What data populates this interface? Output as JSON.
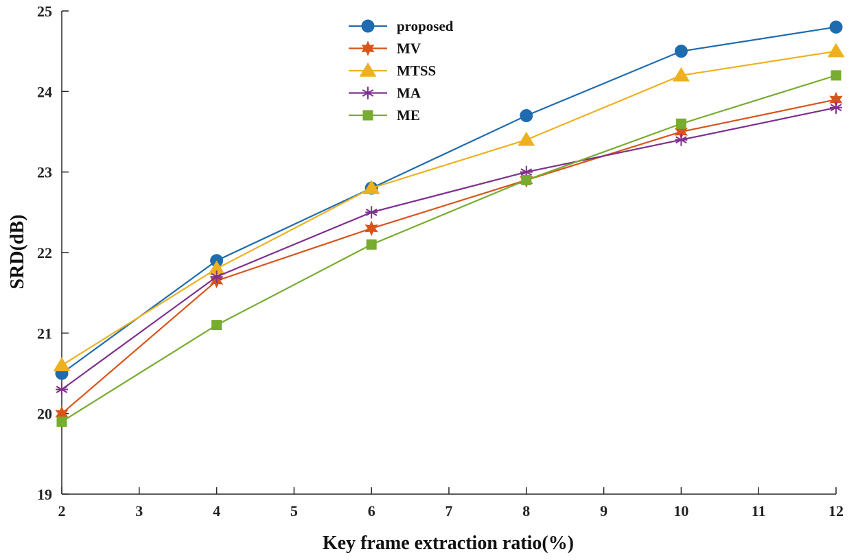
{
  "chart_data": {
    "type": "line",
    "title": "",
    "xlabel": "Key frame extraction ratio(%)",
    "ylabel": "SRD(dB)",
    "x": [
      2,
      4,
      6,
      8,
      10,
      12
    ],
    "xlim": [
      2,
      12
    ],
    "ylim": [
      19,
      25
    ],
    "xticks": [
      "2",
      "3",
      "4",
      "5",
      "6",
      "7",
      "8",
      "9",
      "10",
      "11",
      "12"
    ],
    "yticks": [
      "19",
      "20",
      "21",
      "22",
      "23",
      "24",
      "25"
    ],
    "grid": false,
    "legend_position": "top-center",
    "series": [
      {
        "name": "proposed",
        "marker": "circle",
        "color": "#1f6bb0",
        "values": [
          20.5,
          21.9,
          22.8,
          23.7,
          24.5,
          24.8
        ]
      },
      {
        "name": "MV",
        "marker": "hexagram",
        "color": "#d9541a",
        "values": [
          20.0,
          21.65,
          22.3,
          22.9,
          23.5,
          23.9
        ]
      },
      {
        "name": "MTSS",
        "marker": "triangle",
        "color": "#edb11f",
        "values": [
          20.6,
          21.8,
          22.8,
          23.4,
          24.2,
          24.5
        ]
      },
      {
        "name": "MA",
        "marker": "asterisk",
        "color": "#7e2f8e",
        "values": [
          20.3,
          21.7,
          22.5,
          23.0,
          23.4,
          23.8
        ]
      },
      {
        "name": "ME",
        "marker": "square",
        "color": "#77ac30",
        "values": [
          19.9,
          21.1,
          22.1,
          22.9,
          23.6,
          24.2
        ]
      }
    ]
  }
}
